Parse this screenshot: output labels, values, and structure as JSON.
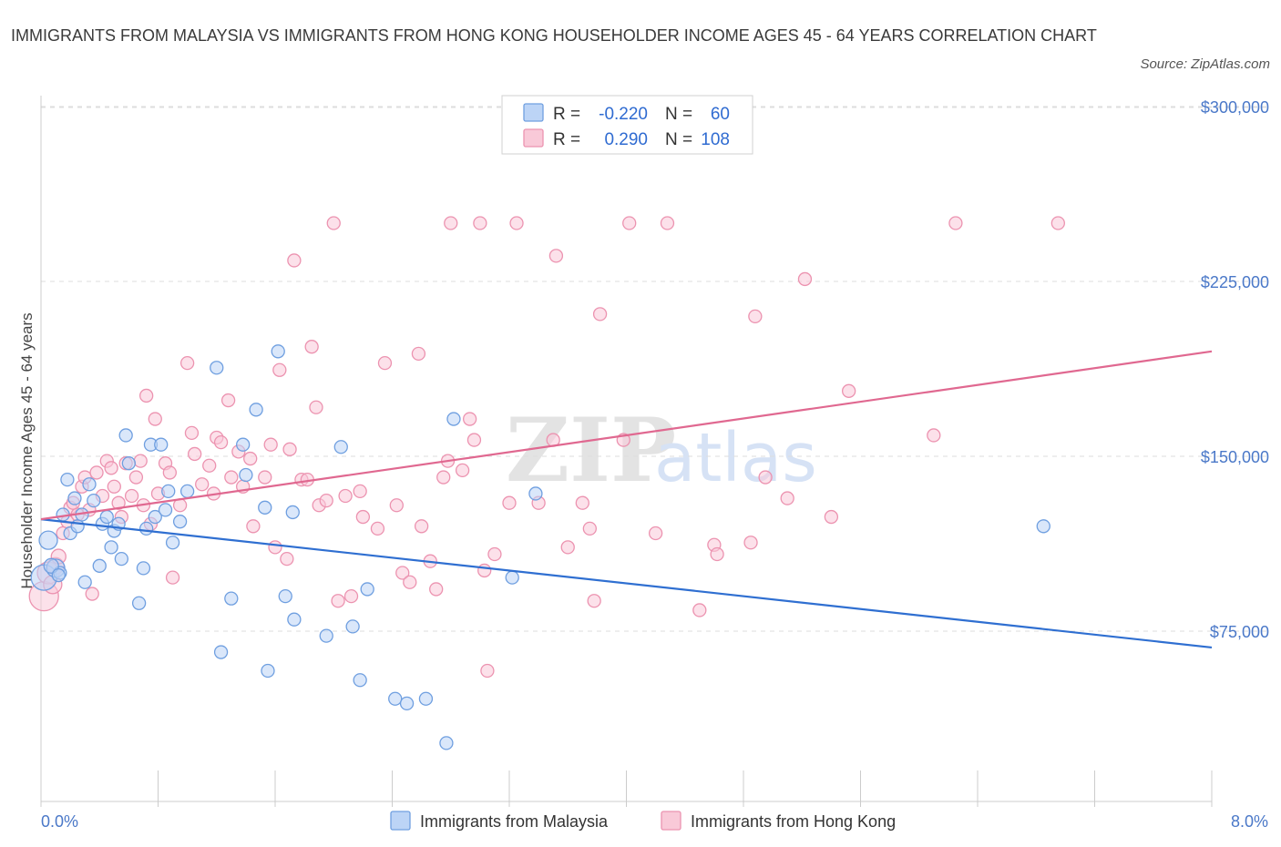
{
  "header": {
    "title": "IMMIGRANTS FROM MALAYSIA VS IMMIGRANTS FROM HONG KONG HOUSEHOLDER INCOME AGES 45 - 64 YEARS CORRELATION CHART",
    "source": "Source: ZipAtlas.com"
  },
  "watermark": {
    "zip": "ZIP",
    "atlas": "atlas"
  },
  "legend": {
    "r_label": "R =",
    "n_label": "N =",
    "rows": [
      {
        "r": "-0.220",
        "n": "60"
      },
      {
        "r": "0.290",
        "n": "108"
      }
    ]
  },
  "colors": {
    "malaysia_fill": "#bcd4f6",
    "malaysia_stroke": "#6f9fe0",
    "malaysia_line": "#2f6fd1",
    "hongkong_fill": "#f9c9d8",
    "hongkong_stroke": "#ec93b0",
    "hongkong_line": "#e06890",
    "grid": "#dddddd",
    "axis_text": "#4a78c8"
  },
  "chart_data": {
    "type": "scatter",
    "xlabel": "",
    "ylabel": "Householder Income Ages 45 - 64 years",
    "xlim": [
      0,
      8
    ],
    "ylim": [
      20000,
      315000
    ],
    "x_tick_labels": [
      {
        "value": 0,
        "label": "0.0%"
      },
      {
        "value": 8,
        "label": "8.0%"
      }
    ],
    "y_tick_labels": [
      {
        "value": 75000,
        "label": "$75,000"
      },
      {
        "value": 150000,
        "label": "$150,000"
      },
      {
        "value": 225000,
        "label": "$225,000"
      },
      {
        "value": 300000,
        "label": "$300,000"
      }
    ],
    "grid": "horizontal dashed",
    "legend_position": "top-center",
    "series": [
      {
        "name": "Immigrants from Malaysia",
        "r": -0.22,
        "n": 60,
        "trend": [
          [
            0,
            123000
          ],
          [
            8,
            68000
          ]
        ],
        "points": [
          [
            0.02,
            98000,
            14
          ],
          [
            0.05,
            114000,
            10
          ],
          [
            0.1,
            102000,
            10
          ],
          [
            0.13,
            100000,
            7
          ],
          [
            0.15,
            125000,
            7
          ],
          [
            0.18,
            140000,
            7
          ],
          [
            0.2,
            117000,
            7
          ],
          [
            0.23,
            132000,
            7
          ],
          [
            0.25,
            120000,
            7
          ],
          [
            0.3,
            96000,
            7
          ],
          [
            0.33,
            138000,
            7
          ],
          [
            0.36,
            131000,
            7
          ],
          [
            0.4,
            103000,
            7
          ],
          [
            0.42,
            121000,
            7
          ],
          [
            0.45,
            124000,
            7
          ],
          [
            0.48,
            111000,
            7
          ],
          [
            0.5,
            118000,
            7
          ],
          [
            0.53,
            121000,
            7
          ],
          [
            0.55,
            106000,
            7
          ],
          [
            0.58,
            159000,
            7
          ],
          [
            0.6,
            147000,
            7
          ],
          [
            0.67,
            87000,
            7
          ],
          [
            0.7,
            102000,
            7
          ],
          [
            0.72,
            119000,
            7
          ],
          [
            0.75,
            155000,
            7
          ],
          [
            0.78,
            124000,
            7
          ],
          [
            0.82,
            155000,
            7
          ],
          [
            0.85,
            127000,
            7
          ],
          [
            0.87,
            135000,
            7
          ],
          [
            0.9,
            113000,
            7
          ],
          [
            0.95,
            122000,
            7
          ],
          [
            1.0,
            135000,
            7
          ],
          [
            1.2,
            188000,
            7
          ],
          [
            1.23,
            66000,
            7
          ],
          [
            1.3,
            89000,
            7
          ],
          [
            1.38,
            155000,
            7
          ],
          [
            1.4,
            142000,
            7
          ],
          [
            1.47,
            170000,
            7
          ],
          [
            1.53,
            128000,
            7
          ],
          [
            1.55,
            58000,
            7
          ],
          [
            1.62,
            195000,
            7
          ],
          [
            1.67,
            90000,
            7
          ],
          [
            1.72,
            126000,
            7
          ],
          [
            1.73,
            80000,
            7
          ],
          [
            1.95,
            73000,
            7
          ],
          [
            2.05,
            154000,
            7
          ],
          [
            2.13,
            77000,
            7
          ],
          [
            2.18,
            54000,
            7
          ],
          [
            2.23,
            93000,
            7
          ],
          [
            2.42,
            46000,
            7
          ],
          [
            2.5,
            44000,
            7
          ],
          [
            2.63,
            46000,
            7
          ],
          [
            2.77,
            27000,
            7
          ],
          [
            2.82,
            166000,
            7
          ],
          [
            3.22,
            98000,
            7
          ],
          [
            3.38,
            134000,
            7
          ],
          [
            6.85,
            120000,
            7
          ],
          [
            0.07,
            103000,
            8
          ],
          [
            0.12,
            99000,
            7
          ],
          [
            0.28,
            125000,
            7
          ]
        ]
      },
      {
        "name": "Immigrants from Hong Kong",
        "r": 0.29,
        "n": 108,
        "trend": [
          [
            0,
            123000
          ],
          [
            8,
            195000
          ]
        ],
        "points": [
          [
            0.02,
            90000,
            16
          ],
          [
            0.05,
            100000,
            12
          ],
          [
            0.08,
            95000,
            10
          ],
          [
            0.1,
            103000,
            9
          ],
          [
            0.12,
            107000,
            8
          ],
          [
            0.15,
            117000,
            7
          ],
          [
            0.18,
            122000,
            7
          ],
          [
            0.2,
            128000,
            7
          ],
          [
            0.22,
            130000,
            7
          ],
          [
            0.25,
            125000,
            7
          ],
          [
            0.28,
            137000,
            7
          ],
          [
            0.3,
            141000,
            7
          ],
          [
            0.33,
            127000,
            7
          ],
          [
            0.35,
            91000,
            7
          ],
          [
            0.38,
            143000,
            7
          ],
          [
            0.42,
            133000,
            7
          ],
          [
            0.45,
            148000,
            7
          ],
          [
            0.48,
            145000,
            7
          ],
          [
            0.5,
            137000,
            7
          ],
          [
            0.53,
            130000,
            7
          ],
          [
            0.55,
            124000,
            7
          ],
          [
            0.58,
            147000,
            7
          ],
          [
            0.62,
            133000,
            7
          ],
          [
            0.65,
            141000,
            7
          ],
          [
            0.68,
            148000,
            7
          ],
          [
            0.7,
            129000,
            7
          ],
          [
            0.72,
            176000,
            7
          ],
          [
            0.75,
            121000,
            7
          ],
          [
            0.78,
            166000,
            7
          ],
          [
            0.8,
            134000,
            7
          ],
          [
            0.85,
            147000,
            7
          ],
          [
            0.88,
            143000,
            7
          ],
          [
            0.9,
            98000,
            7
          ],
          [
            0.95,
            129000,
            7
          ],
          [
            1.0,
            190000,
            7
          ],
          [
            1.03,
            160000,
            7
          ],
          [
            1.05,
            151000,
            7
          ],
          [
            1.1,
            138000,
            7
          ],
          [
            1.15,
            146000,
            7
          ],
          [
            1.18,
            134000,
            7
          ],
          [
            1.2,
            158000,
            7
          ],
          [
            1.23,
            156000,
            7
          ],
          [
            1.28,
            174000,
            7
          ],
          [
            1.3,
            141000,
            7
          ],
          [
            1.35,
            152000,
            7
          ],
          [
            1.38,
            137000,
            7
          ],
          [
            1.43,
            149000,
            7
          ],
          [
            1.45,
            120000,
            7
          ],
          [
            1.53,
            141000,
            7
          ],
          [
            1.57,
            155000,
            7
          ],
          [
            1.6,
            111000,
            7
          ],
          [
            1.63,
            187000,
            7
          ],
          [
            1.68,
            106000,
            7
          ],
          [
            1.7,
            153000,
            7
          ],
          [
            1.73,
            234000,
            7
          ],
          [
            1.78,
            140000,
            7
          ],
          [
            1.82,
            140000,
            7
          ],
          [
            1.85,
            197000,
            7
          ],
          [
            1.88,
            171000,
            7
          ],
          [
            1.9,
            129000,
            7
          ],
          [
            1.95,
            131000,
            7
          ],
          [
            2.0,
            250000,
            7
          ],
          [
            2.03,
            88000,
            7
          ],
          [
            2.08,
            133000,
            7
          ],
          [
            2.12,
            90000,
            7
          ],
          [
            2.18,
            135000,
            7
          ],
          [
            2.2,
            124000,
            7
          ],
          [
            2.3,
            119000,
            7
          ],
          [
            2.35,
            190000,
            7
          ],
          [
            2.43,
            129000,
            7
          ],
          [
            2.47,
            100000,
            7
          ],
          [
            2.52,
            96000,
            7
          ],
          [
            2.58,
            194000,
            7
          ],
          [
            2.6,
            120000,
            7
          ],
          [
            2.66,
            105000,
            7
          ],
          [
            2.7,
            93000,
            7
          ],
          [
            2.75,
            141000,
            7
          ],
          [
            2.78,
            148000,
            7
          ],
          [
            2.8,
            250000,
            7
          ],
          [
            2.88,
            144000,
            7
          ],
          [
            2.93,
            166000,
            7
          ],
          [
            2.96,
            157000,
            7
          ],
          [
            3.0,
            250000,
            7
          ],
          [
            3.03,
            101000,
            7
          ],
          [
            3.05,
            58000,
            7
          ],
          [
            3.1,
            108000,
            7
          ],
          [
            3.2,
            130000,
            7
          ],
          [
            3.25,
            250000,
            7
          ],
          [
            3.4,
            130000,
            7
          ],
          [
            3.5,
            157000,
            7
          ],
          [
            3.52,
            236000,
            7
          ],
          [
            3.6,
            111000,
            7
          ],
          [
            3.7,
            130000,
            7
          ],
          [
            3.75,
            119000,
            7
          ],
          [
            3.78,
            88000,
            7
          ],
          [
            3.82,
            211000,
            7
          ],
          [
            3.98,
            157000,
            7
          ],
          [
            4.02,
            250000,
            7
          ],
          [
            4.2,
            117000,
            7
          ],
          [
            4.28,
            250000,
            7
          ],
          [
            4.5,
            84000,
            7
          ],
          [
            4.6,
            112000,
            7
          ],
          [
            4.62,
            108000,
            7
          ],
          [
            4.85,
            113000,
            7
          ],
          [
            4.88,
            210000,
            7
          ],
          [
            4.95,
            141000,
            7
          ],
          [
            5.1,
            132000,
            7
          ],
          [
            5.22,
            226000,
            7
          ],
          [
            5.4,
            124000,
            7
          ],
          [
            5.52,
            178000,
            7
          ],
          [
            6.1,
            159000,
            7
          ],
          [
            6.25,
            250000,
            7
          ],
          [
            6.95,
            250000,
            7
          ]
        ]
      }
    ]
  }
}
